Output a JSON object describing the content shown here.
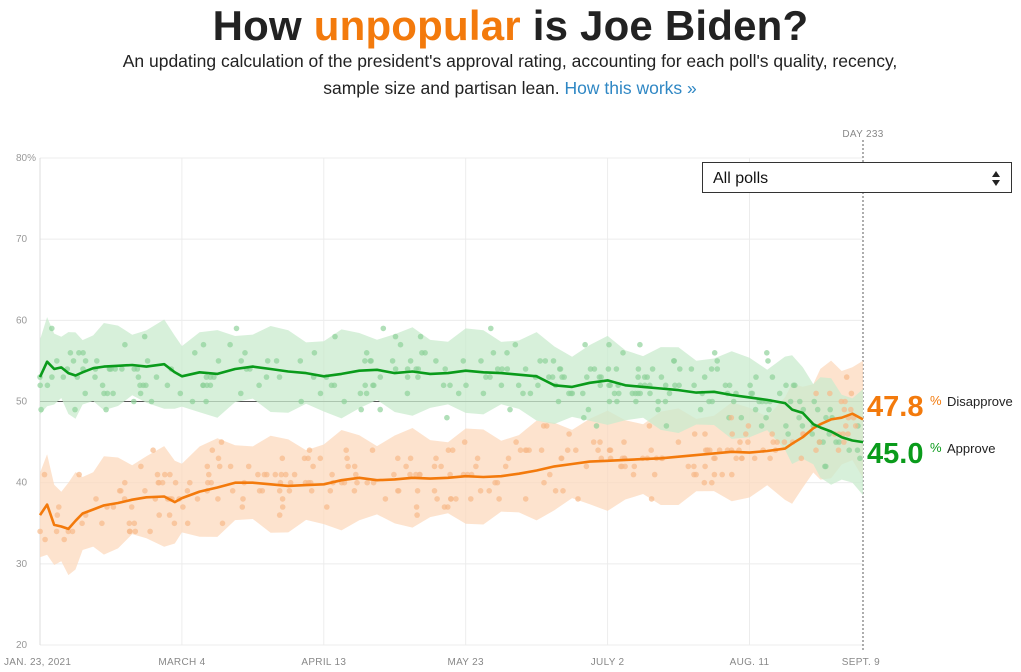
{
  "header": {
    "title_pre": "How ",
    "title_highlight": "unpopular",
    "title_post": " is Joe Biden?",
    "subtitle": "An updating calculation of the president's approval rating, accounting for each poll's quality, recency, sample size and partisan lean.",
    "link_label": "How this works »"
  },
  "filter": {
    "selected": "All polls"
  },
  "chart_data": {
    "type": "line",
    "day_marker": "DAY 233",
    "y_ticks": [
      "80%",
      "70",
      "60",
      "50",
      "40",
      "30",
      "20"
    ],
    "ylim": [
      20,
      80
    ],
    "x_ticks": [
      "JAN. 23, 2021",
      "MARCH 4",
      "APRIL 13",
      "MAY 23",
      "JULY 2",
      "AUG. 11",
      "SEPT. 9"
    ],
    "x_tick_days": [
      0,
      40,
      80,
      120,
      160,
      200,
      232
    ],
    "xlim": [
      0,
      232
    ],
    "colors": {
      "approve": "#0a9b1b",
      "disapprove": "#f37a0c",
      "approve_band": "#c9ebcd",
      "disapprove_band": "#fcd9bd"
    },
    "series": [
      {
        "name": "Approve",
        "final_value": "45.0",
        "days": [
          0,
          2,
          4,
          6,
          8,
          10,
          12,
          15,
          18,
          22,
          26,
          30,
          35,
          38,
          40,
          45,
          50,
          55,
          60,
          65,
          70,
          75,
          80,
          85,
          90,
          95,
          100,
          105,
          110,
          115,
          120,
          125,
          130,
          135,
          140,
          145,
          150,
          155,
          160,
          165,
          170,
          175,
          180,
          185,
          190,
          195,
          200,
          205,
          210,
          212,
          215,
          218,
          220,
          223,
          226,
          229,
          232
        ],
        "values": [
          53.0,
          54.9,
          54.0,
          54.2,
          53.5,
          53.2,
          53.6,
          54.1,
          54.3,
          54.4,
          54.5,
          54.3,
          54.6,
          53.6,
          53.1,
          53.6,
          53.4,
          54.0,
          54.3,
          54.0,
          53.7,
          53.5,
          53.1,
          53.4,
          53.8,
          53.9,
          53.5,
          53.7,
          53.4,
          53.5,
          53.8,
          53.6,
          53.5,
          53.3,
          53.1,
          52.0,
          51.8,
          52.3,
          52.6,
          52.0,
          51.8,
          51.6,
          51.4,
          51.1,
          51.2,
          50.8,
          50.5,
          50.2,
          49.8,
          49.0,
          48.6,
          47.2,
          46.8,
          46.3,
          45.6,
          45.2,
          45.0
        ]
      },
      {
        "name": "Disapprove",
        "final_value": "47.8",
        "days": [
          0,
          2,
          4,
          6,
          8,
          10,
          12,
          15,
          18,
          22,
          26,
          30,
          35,
          38,
          40,
          45,
          50,
          55,
          60,
          65,
          70,
          75,
          80,
          85,
          90,
          95,
          100,
          105,
          110,
          115,
          120,
          125,
          130,
          135,
          140,
          145,
          150,
          155,
          160,
          165,
          170,
          175,
          180,
          185,
          190,
          195,
          200,
          205,
          210,
          212,
          215,
          218,
          220,
          223,
          226,
          229,
          232
        ],
        "values": [
          36.0,
          37.3,
          34.8,
          34.6,
          34.3,
          35.3,
          36.2,
          36.7,
          37.2,
          37.5,
          37.9,
          38.2,
          38.3,
          37.6,
          38.1,
          38.9,
          39.4,
          40.0,
          40.0,
          39.8,
          39.6,
          39.7,
          39.8,
          40.3,
          40.6,
          40.3,
          40.4,
          40.6,
          40.5,
          40.6,
          40.8,
          40.7,
          40.8,
          41.1,
          41.5,
          42.0,
          42.3,
          42.6,
          42.7,
          42.8,
          42.9,
          43.0,
          43.2,
          43.4,
          43.6,
          43.8,
          43.7,
          43.9,
          44.2,
          44.8,
          45.6,
          46.7,
          47.2,
          47.8,
          48.0,
          48.5,
          47.8
        ]
      }
    ]
  }
}
